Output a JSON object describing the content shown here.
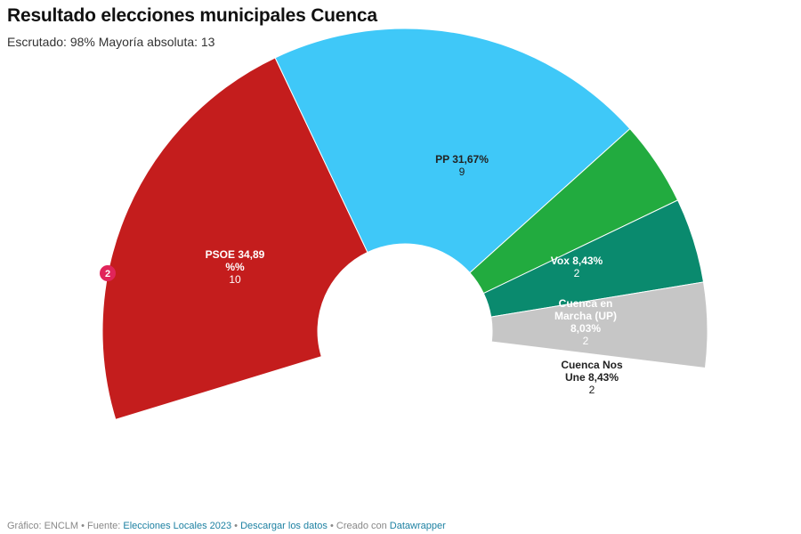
{
  "title": "Resultado elecciones municipales Cuenca",
  "subtitle": "Escrutado: 98% Mayoría absoluta: 13",
  "chart_data": {
    "type": "pie",
    "variant": "half-donut",
    "total_seats": 25,
    "slices": [
      {
        "name": "PSOE",
        "label_lines": [
          "PSOE 34,89",
          "%%"
        ],
        "seats": 10,
        "value": 34.89,
        "color": "#c41d1d",
        "text_color": "#ffffff"
      },
      {
        "name": "PP",
        "label_lines": [
          "PP 31,67%"
        ],
        "seats": 9,
        "value": 31.67,
        "color": "#3fc8f8",
        "text_color": "#222222"
      },
      {
        "name": "Vox",
        "label_lines": [
          "Vox 8,43%"
        ],
        "seats": 2,
        "value": 8.43,
        "color": "#22ab3f",
        "text_color": "#ffffff"
      },
      {
        "name": "Cuenca en Marcha (UP)",
        "label_lines": [
          "Cuenca en",
          "Marcha (UP)",
          "8,03%"
        ],
        "seats": 2,
        "value": 8.03,
        "color": "#0a8a6e",
        "text_color": "#ffffff"
      },
      {
        "name": "Cuenca Nos Une",
        "label_lines": [
          "Cuenca Nos",
          "Une 8,43%"
        ],
        "seats": 2,
        "value": 8.43,
        "color": "#c6c6c6",
        "text_color": "#222222"
      }
    ],
    "annotation": {
      "text": "2",
      "color": "#e1245a"
    }
  },
  "footer": {
    "grafico": "Gráfico: ENCLM",
    "sep1": " • Fuente: ",
    "fuente_link": "Elecciones Locales 2023",
    "sep2": " • ",
    "download_link": "Descargar los datos",
    "sep3": " • Creado con ",
    "creator_link": "Datawrapper"
  }
}
